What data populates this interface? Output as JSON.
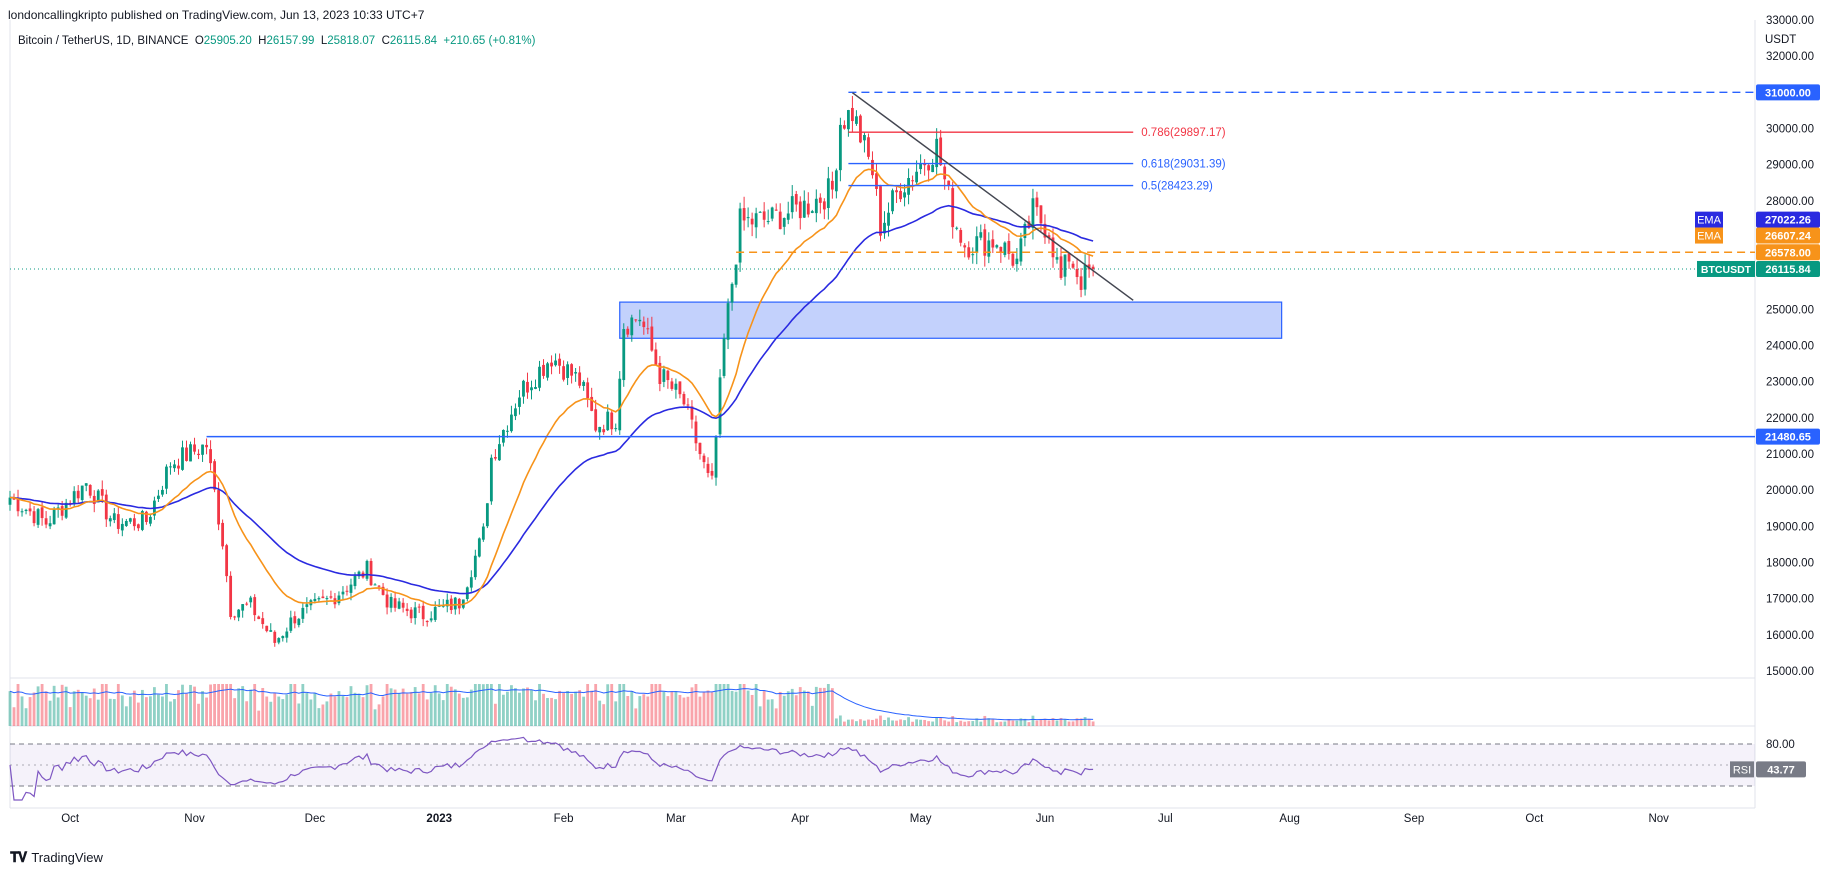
{
  "header": {
    "published": "londoncallingkripto published on TradingView.com, Jun 13, 2023 10:33 UTC+7"
  },
  "legend": {
    "symbol": "Bitcoin / TetherUS, 1D, BINANCE",
    "o_label": "O",
    "o_value": "25905.20",
    "h_label": "H",
    "h_value": "26157.99",
    "l_label": "L",
    "l_value": "25818.07",
    "c_label": "C",
    "c_value": "26115.84",
    "change": "+210.65 (+0.81%)"
  },
  "unit": "USDT",
  "footer": {
    "logo_text": "TradingView"
  },
  "colors": {
    "up": "#089981",
    "down": "#f23645",
    "ema_fast": "#f7931a",
    "ema_slow": "#2a2ae0",
    "zone": "#b9c9fb",
    "zone_border": "#2962ff",
    "hline": "#2962ff",
    "trend": "#434651",
    "fib_786": "#f23645",
    "fib_618": "#2962ff",
    "fib_5": "#2962ff"
  },
  "chart_data": {
    "type": "candlestick",
    "symbol": "BTCUSDT",
    "interval": "1D",
    "ylim": [
      15000,
      33000
    ],
    "y_ticks": [
      15000,
      16000,
      17000,
      18000,
      19000,
      20000,
      21000,
      22000,
      23000,
      24000,
      25000,
      26000,
      27000,
      28000,
      29000,
      30000,
      31000,
      32000,
      33000
    ],
    "y_tick_labels": [
      "15000.00",
      "16000.00",
      "17000.00",
      "18000.00",
      "19000.00",
      "20000.00",
      "21000.00",
      "22000.00",
      "23000.00",
      "24000.00",
      "25000.00",
      "26000.00",
      "27000.00",
      "28000.00",
      "29000.00",
      "30000.00",
      "31000.00",
      "32000.00",
      "33000.00"
    ],
    "x_range": [
      "2022-09-16",
      "2023-11-25"
    ],
    "x_ticks": [
      {
        "date": "2022-10-01",
        "label": "Oct"
      },
      {
        "date": "2022-11-01",
        "label": "Nov"
      },
      {
        "date": "2022-12-01",
        "label": "Dec"
      },
      {
        "date": "2023-01-01",
        "label": "2023"
      },
      {
        "date": "2023-02-01",
        "label": "Feb"
      },
      {
        "date": "2023-03-01",
        "label": "Mar"
      },
      {
        "date": "2023-04-01",
        "label": "Apr"
      },
      {
        "date": "2023-05-01",
        "label": "May"
      },
      {
        "date": "2023-06-01",
        "label": "Jun"
      },
      {
        "date": "2023-07-01",
        "label": "Jul"
      },
      {
        "date": "2023-08-01",
        "label": "Aug"
      },
      {
        "date": "2023-09-01",
        "label": "Sep"
      },
      {
        "date": "2023-10-01",
        "label": "Oct"
      },
      {
        "date": "2023-11-01",
        "label": "Nov"
      }
    ],
    "close_anchors": [
      [
        "2022-09-16",
        19800
      ],
      [
        "2022-09-25",
        19100
      ],
      [
        "2022-10-05",
        20200
      ],
      [
        "2022-10-12",
        19100
      ],
      [
        "2022-10-20",
        19150
      ],
      [
        "2022-10-26",
        20750
      ],
      [
        "2022-11-04",
        21250
      ],
      [
        "2022-11-08",
        18600
      ],
      [
        "2022-11-10",
        16700
      ],
      [
        "2022-11-15",
        16800
      ],
      [
        "2022-11-21",
        15800
      ],
      [
        "2022-11-26",
        16500
      ],
      [
        "2022-12-05",
        17000
      ],
      [
        "2022-12-14",
        17800
      ],
      [
        "2022-12-20",
        16800
      ],
      [
        "2022-12-28",
        16550
      ],
      [
        "2023-01-06",
        16900
      ],
      [
        "2023-01-12",
        18800
      ],
      [
        "2023-01-14",
        20900
      ],
      [
        "2023-01-21",
        22700
      ],
      [
        "2023-01-29",
        23700
      ],
      [
        "2023-02-05",
        23000
      ],
      [
        "2023-02-09",
        21800
      ],
      [
        "2023-02-14",
        22000
      ],
      [
        "2023-02-16",
        24600
      ],
      [
        "2023-02-20",
        24800
      ],
      [
        "2023-02-25",
        23200
      ],
      [
        "2023-03-03",
        22400
      ],
      [
        "2023-03-09",
        20300
      ],
      [
        "2023-03-10",
        20150
      ],
      [
        "2023-03-13",
        24100
      ],
      [
        "2023-03-17",
        27400
      ],
      [
        "2023-03-25",
        27500
      ],
      [
        "2023-04-03",
        27900
      ],
      [
        "2023-04-09",
        28300
      ],
      [
        "2023-04-11",
        30200
      ],
      [
        "2023-04-14",
        30450
      ],
      [
        "2023-04-19",
        28800
      ],
      [
        "2023-04-21",
        27300
      ],
      [
        "2023-04-26",
        28400
      ],
      [
        "2023-05-05",
        29500
      ],
      [
        "2023-05-09",
        27600
      ],
      [
        "2023-05-12",
        26800
      ],
      [
        "2023-05-20",
        26900
      ],
      [
        "2023-05-25",
        26300
      ],
      [
        "2023-05-29",
        27700
      ],
      [
        "2023-06-02",
        27200
      ],
      [
        "2023-06-05",
        25800
      ],
      [
        "2023-06-07",
        26500
      ],
      [
        "2023-06-10",
        25800
      ],
      [
        "2023-06-13",
        26115.84
      ]
    ],
    "last_date": "2023-06-13",
    "indicators": {
      "ema_slow": {
        "label": "EMA",
        "value": "27022.26"
      },
      "ema_fast": {
        "label": "EMA",
        "value": "26607.24"
      },
      "last_price": {
        "label": "BTCUSDT",
        "value": "26115.84"
      },
      "rsi": {
        "label": "RSI",
        "value": "43.77",
        "level_label": "80.00",
        "ylim": [
          0,
          100
        ],
        "upper": 80,
        "lower": 20
      }
    },
    "levels": [
      {
        "name": "resistance",
        "value": 31000,
        "label": "31000.00",
        "style": "dashed",
        "from": "2023-04-13"
      },
      {
        "name": "dashed-level",
        "value": 26578,
        "label": "26578.00",
        "style": "dashed",
        "from": "2023-03-16"
      },
      {
        "name": "support",
        "value": 21480.65,
        "label": "21480.65",
        "style": "solid",
        "from": "2022-11-04"
      }
    ],
    "fib_levels": [
      {
        "ratio": "0.786",
        "value": 29897.17,
        "label": "0.786(29897.17)",
        "from": "2023-04-13",
        "to": "2023-06-23"
      },
      {
        "ratio": "0.618",
        "value": 29031.39,
        "label": "0.618(29031.39)",
        "from": "2023-04-13",
        "to": "2023-06-23"
      },
      {
        "ratio": "0.5",
        "value": 28423.29,
        "label": "0.5(28423.29)",
        "from": "2023-04-13",
        "to": "2023-06-23"
      }
    ],
    "zone": {
      "from": "2023-02-15",
      "to": "2023-07-30",
      "low": 24200,
      "high": 25200
    },
    "trendline": {
      "from": [
        "2023-04-14",
        30990
      ],
      "to": [
        "2023-06-23",
        25250
      ]
    },
    "volume_end": "2023-06-13"
  }
}
